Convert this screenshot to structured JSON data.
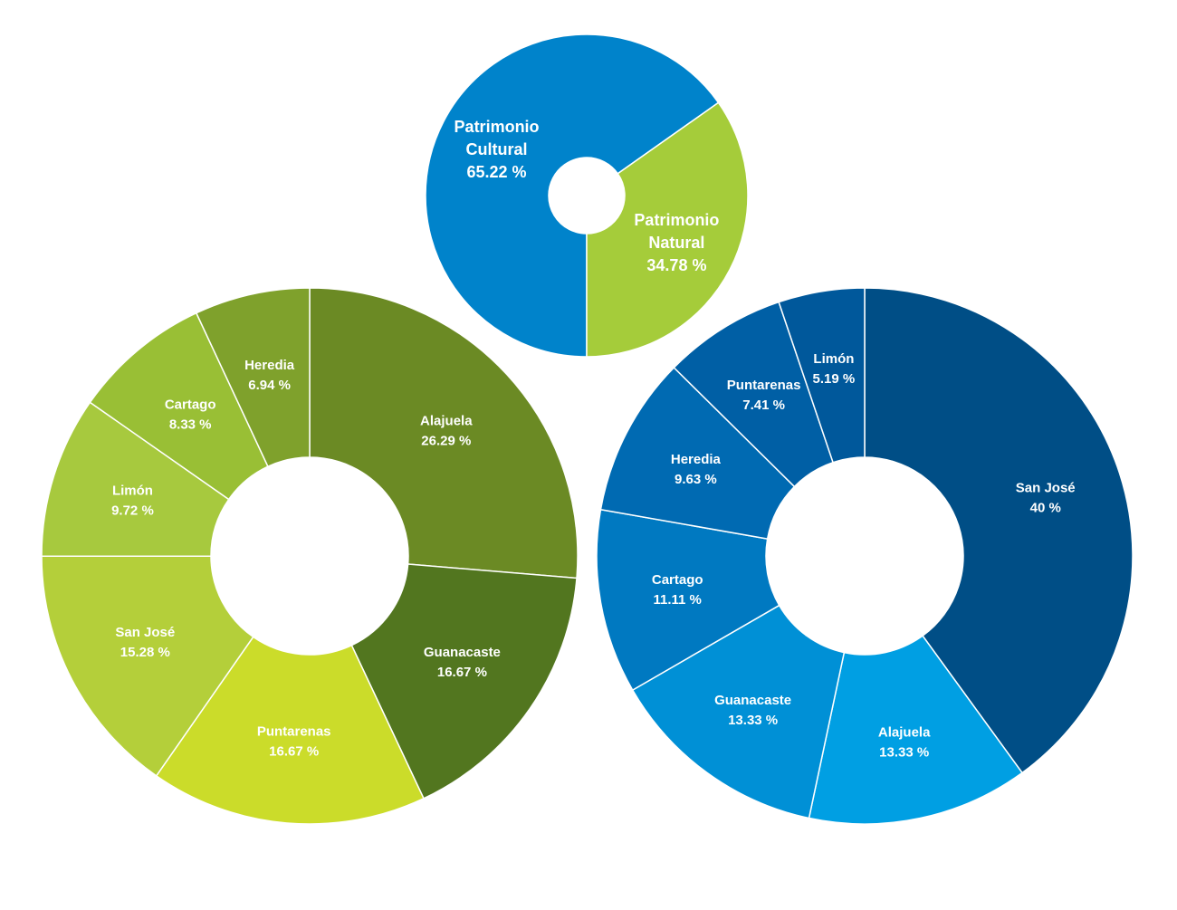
{
  "chart_data": [
    {
      "type": "pie",
      "variant": "donut",
      "categories": [
        "Patrimonio Cultural",
        "Patrimonio Natural"
      ],
      "values": [
        65.22,
        34.78
      ],
      "labels": [
        {
          "lines": [
            "Patrimonio",
            "Cultural",
            "65.22 %"
          ]
        },
        {
          "lines": [
            "Patrimonio",
            "Natural",
            "34.78 %"
          ]
        }
      ],
      "colors": [
        "#0083CB",
        "#A5CC3A"
      ]
    },
    {
      "type": "pie",
      "variant": "donut",
      "categories": [
        "Alajuela",
        "Guanacaste",
        "Puntarenas",
        "San José",
        "Limón",
        "Cartago",
        "Heredia"
      ],
      "values": [
        26.29,
        16.67,
        16.67,
        15.28,
        9.72,
        8.33,
        6.94
      ],
      "labels": [
        {
          "lines": [
            "Alajuela",
            "26.29 %"
          ]
        },
        {
          "lines": [
            "Guanacaste",
            "16.67 %"
          ]
        },
        {
          "lines": [
            "Puntarenas",
            "16.67 %"
          ]
        },
        {
          "lines": [
            "San José",
            "15.28 %"
          ]
        },
        {
          "lines": [
            "Limón",
            "9.72 %"
          ]
        },
        {
          "lines": [
            "Cartago",
            "8.33 %"
          ]
        },
        {
          "lines": [
            "Heredia",
            "6.94 %"
          ]
        }
      ],
      "colors": [
        "#6B8A24",
        "#52761F",
        "#CBDC2A",
        "#B4CF3A",
        "#A7C93E",
        "#99BF35",
        "#7FA12C"
      ]
    },
    {
      "type": "pie",
      "variant": "donut",
      "categories": [
        "San José",
        "Alajuela",
        "Guanacaste",
        "Cartago",
        "Heredia",
        "Puntarenas",
        "Limón"
      ],
      "values": [
        40,
        13.33,
        13.33,
        11.11,
        9.63,
        7.41,
        5.19
      ],
      "labels": [
        {
          "lines": [
            "San José",
            "40 %"
          ]
        },
        {
          "lines": [
            "Alajuela",
            "13.33 %"
          ]
        },
        {
          "lines": [
            "Guanacaste",
            "13.33 %"
          ]
        },
        {
          "lines": [
            "Cartago",
            "11.11 %"
          ]
        },
        {
          "lines": [
            "Heredia",
            "9.63 %"
          ]
        },
        {
          "lines": [
            "Puntarenas",
            "7.41 %"
          ]
        },
        {
          "lines": [
            "Limón",
            "5.19 %"
          ]
        }
      ],
      "colors": [
        "#004E86",
        "#009FE3",
        "#0090D6",
        "#0079C1",
        "#006AB2",
        "#005FA5",
        "#00589B"
      ]
    }
  ]
}
